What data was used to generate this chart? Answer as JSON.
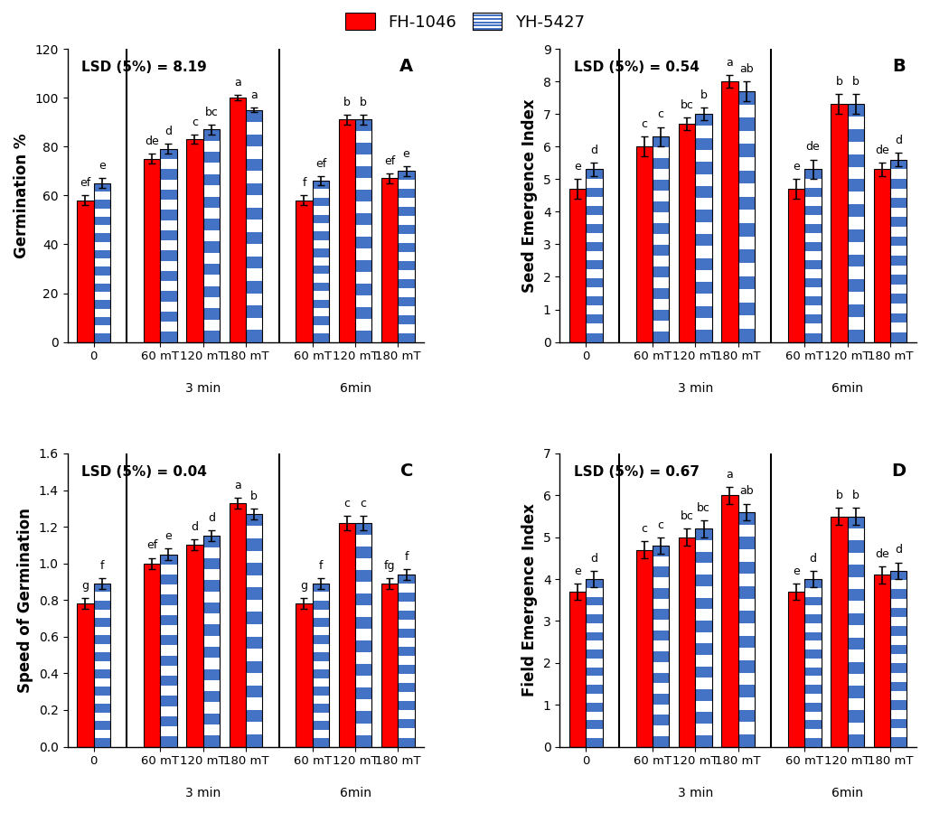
{
  "panel_A": {
    "title": "LSD (5%) = 8.19",
    "ylabel": "Germination %",
    "label": "A",
    "ylim": [
      0,
      120
    ],
    "yticks": [
      0,
      20,
      40,
      60,
      80,
      100,
      120
    ],
    "fh_values": [
      58,
      75,
      83,
      100,
      58,
      91,
      67
    ],
    "yh_values": [
      65,
      79,
      87,
      95,
      66,
      91,
      70
    ],
    "fh_err": [
      2,
      2,
      2,
      1,
      2,
      2,
      2
    ],
    "yh_err": [
      2,
      2,
      2,
      1,
      2,
      2,
      2
    ],
    "fh_labels": [
      "ef",
      "de",
      "c",
      "a",
      "f",
      "b",
      "ef"
    ],
    "yh_labels": [
      "e",
      "d",
      "bc",
      "a",
      "ef",
      "b",
      "e"
    ]
  },
  "panel_B": {
    "title": "LSD (5%) = 0.54",
    "ylabel": "Seed Emergence Index",
    "label": "B",
    "ylim": [
      0,
      9
    ],
    "yticks": [
      0,
      1,
      2,
      3,
      4,
      5,
      6,
      7,
      8,
      9
    ],
    "fh_values": [
      4.7,
      6.0,
      6.7,
      8.0,
      4.7,
      7.3,
      5.3
    ],
    "yh_values": [
      5.3,
      6.3,
      7.0,
      7.7,
      5.3,
      7.3,
      5.6
    ],
    "fh_err": [
      0.3,
      0.3,
      0.2,
      0.2,
      0.3,
      0.3,
      0.2
    ],
    "yh_err": [
      0.2,
      0.3,
      0.2,
      0.3,
      0.3,
      0.3,
      0.2
    ],
    "fh_labels": [
      "e",
      "c",
      "bc",
      "a",
      "e",
      "b",
      "de"
    ],
    "yh_labels": [
      "d",
      "c",
      "b",
      "ab",
      "de",
      "b",
      "d"
    ]
  },
  "panel_C": {
    "title": "LSD (5%) = 0.04",
    "ylabel": "Speed of Germination",
    "label": "C",
    "ylim": [
      0,
      1.6
    ],
    "yticks": [
      0,
      0.2,
      0.4,
      0.6,
      0.8,
      1.0,
      1.2,
      1.4,
      1.6
    ],
    "fh_values": [
      0.78,
      1.0,
      1.1,
      1.33,
      0.78,
      1.22,
      0.89
    ],
    "yh_values": [
      0.89,
      1.05,
      1.15,
      1.27,
      0.89,
      1.22,
      0.94
    ],
    "fh_err": [
      0.03,
      0.03,
      0.03,
      0.03,
      0.03,
      0.04,
      0.03
    ],
    "yh_err": [
      0.03,
      0.03,
      0.03,
      0.03,
      0.03,
      0.04,
      0.03
    ],
    "fh_labels": [
      "g",
      "ef",
      "d",
      "a",
      "g",
      "c",
      "fg"
    ],
    "yh_labels": [
      "f",
      "e",
      "d",
      "b",
      "f",
      "c",
      "f"
    ]
  },
  "panel_D": {
    "title": "LSD (5%) = 0.67",
    "ylabel": "Field Emergence Index",
    "label": "D",
    "ylim": [
      0,
      7
    ],
    "yticks": [
      0,
      1,
      2,
      3,
      4,
      5,
      6,
      7
    ],
    "fh_values": [
      3.7,
      4.7,
      5.0,
      6.0,
      3.7,
      5.5,
      4.1
    ],
    "yh_values": [
      4.0,
      4.8,
      5.2,
      5.6,
      4.0,
      5.5,
      4.2
    ],
    "fh_err": [
      0.2,
      0.2,
      0.2,
      0.2,
      0.2,
      0.2,
      0.2
    ],
    "yh_err": [
      0.2,
      0.2,
      0.2,
      0.2,
      0.2,
      0.2,
      0.2
    ],
    "fh_labels": [
      "e",
      "c",
      "bc",
      "a",
      "e",
      "b",
      "de"
    ],
    "yh_labels": [
      "d",
      "c",
      "bc",
      "ab",
      "d",
      "b",
      "d"
    ]
  },
  "groups": [
    "0",
    "60 mT",
    "120 mT",
    "180 mT",
    "60 mT",
    "120 mT",
    "180 mT"
  ],
  "fh_color": "#FF0000",
  "yh_color": "#4472C4",
  "bar_width": 0.35,
  "legend_fh": "FH-1046",
  "legend_yh": "YH-5427",
  "stripe_color": "#4472C4",
  "stripe_white": "#FFFFFF"
}
